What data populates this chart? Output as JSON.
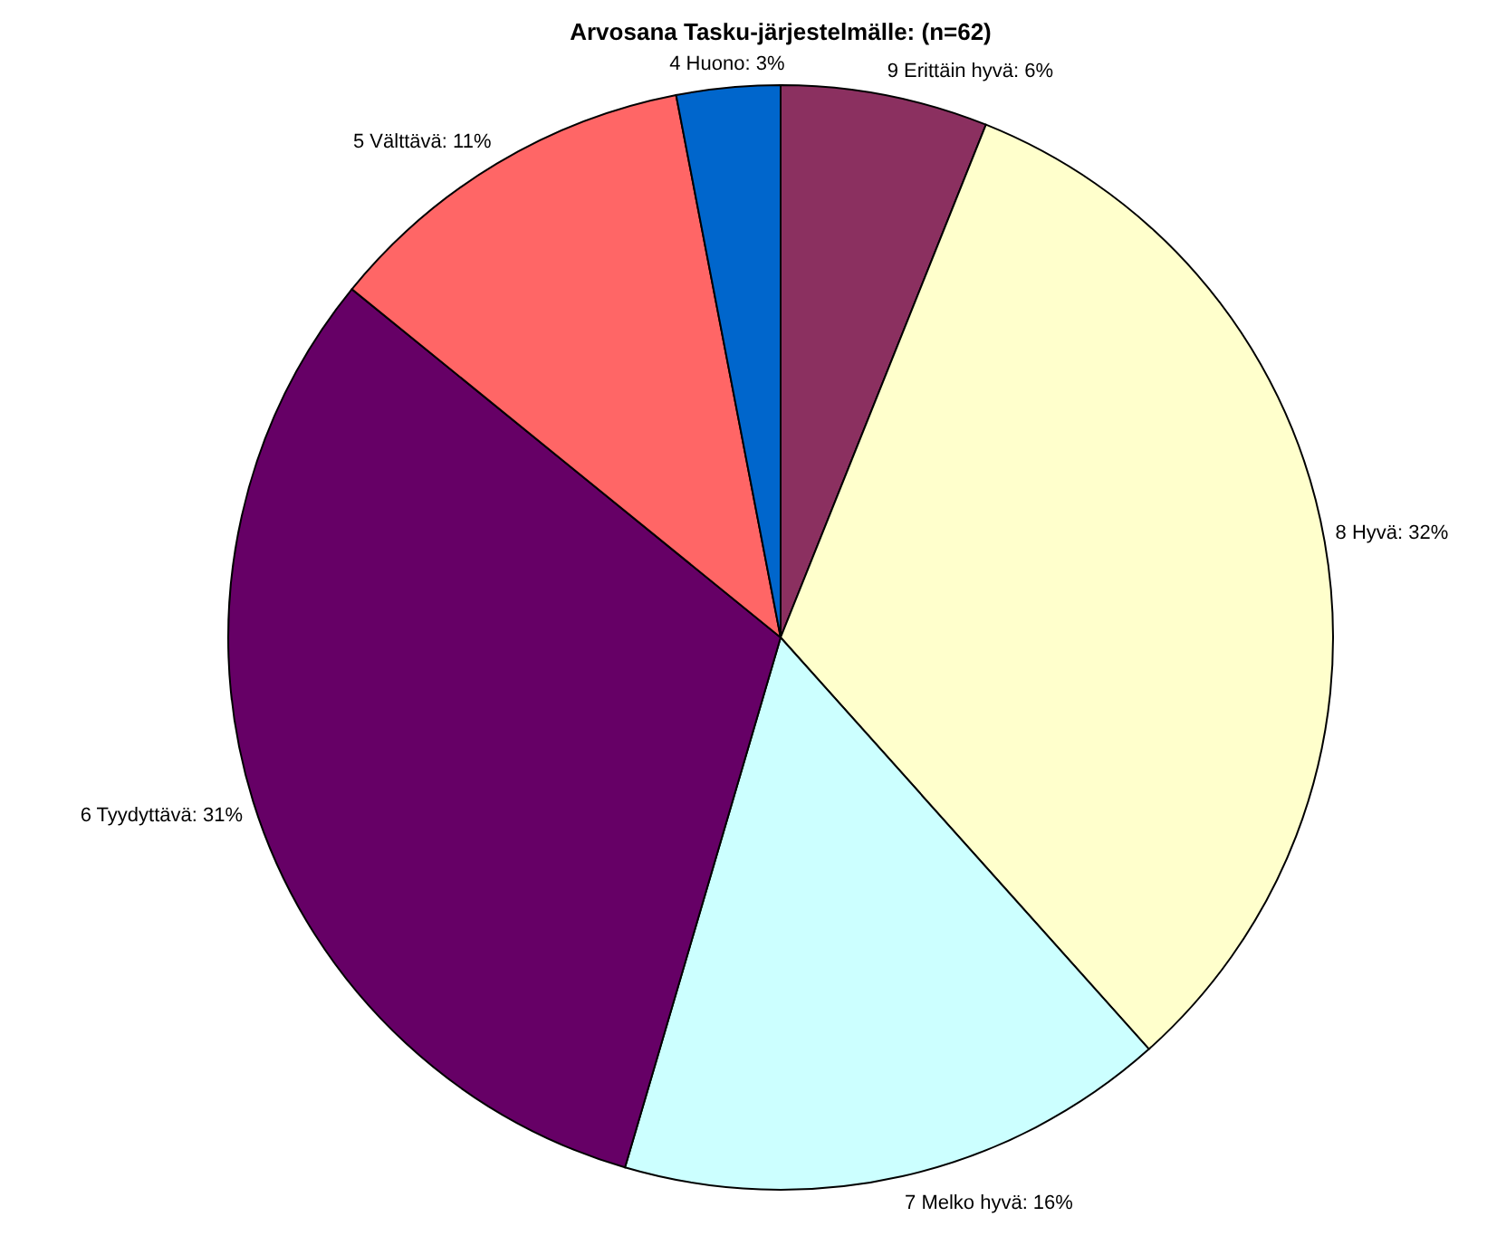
{
  "chart_data": {
    "type": "pie",
    "title": "Arvosana Tasku-järjestelmälle: (n=62)",
    "categories": [
      "9 Erittäin hyvä",
      "8 Hyvä",
      "7 Melko hyvä",
      "6 Tyydyttävä",
      "5 Välttävä",
      "4 Huono"
    ],
    "values": [
      6,
      32,
      16,
      31,
      11,
      3
    ],
    "value_labels": [
      "6%",
      "32%",
      "16%",
      "31%",
      "11%",
      "3%"
    ],
    "colors": [
      "#8b3060",
      "#ffffcc",
      "#ccffff",
      "#660066",
      "#ff6666",
      "#0066cc"
    ]
  }
}
